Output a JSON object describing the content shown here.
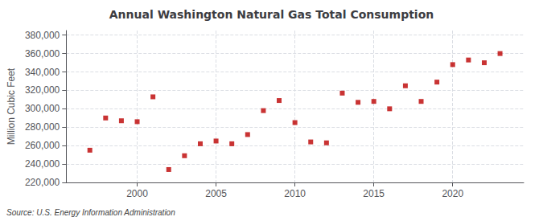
{
  "chart_data": {
    "type": "scatter",
    "title": "Annual Washington Natural Gas Total Consumption",
    "ylabel": "Million Cubic Feet",
    "annotation": "Source: U.S. Energy Information Administration",
    "x": [
      1997,
      1998,
      1999,
      2000,
      2001,
      2002,
      2003,
      2004,
      2005,
      2006,
      2007,
      2008,
      2009,
      2010,
      2011,
      2012,
      2013,
      2014,
      2015,
      2016,
      2017,
      2018,
      2019,
      2020,
      2021,
      2022,
      2023
    ],
    "values": [
      255000,
      290000,
      287000,
      286000,
      313000,
      234000,
      249000,
      262000,
      265000,
      262000,
      272000,
      298000,
      309000,
      285000,
      264000,
      263000,
      317000,
      307000,
      308000,
      300000,
      325000,
      308000,
      329000,
      348000,
      353000,
      350000,
      360000
    ],
    "color": "#bb0000",
    "marker": "square",
    "xlim": [
      1995.5,
      2024.5
    ],
    "xticks": [
      2000,
      2005,
      2010,
      2015,
      2020
    ],
    "ylim": [
      220000,
      385000
    ],
    "yticks": [
      {
        "value": 220000,
        "label": "220,000"
      },
      {
        "value": 240000,
        "label": "240,000"
      },
      {
        "value": 260000,
        "label": "260,000"
      },
      {
        "value": 280000,
        "label": "280,000"
      },
      {
        "value": 300000,
        "label": "300,000"
      },
      {
        "value": 320000,
        "label": "320,000"
      },
      {
        "value": 340000,
        "label": "340,000"
      },
      {
        "value": 360000,
        "label": "360,000"
      },
      {
        "value": 380000,
        "label": "380,000"
      }
    ],
    "grid": true
  }
}
